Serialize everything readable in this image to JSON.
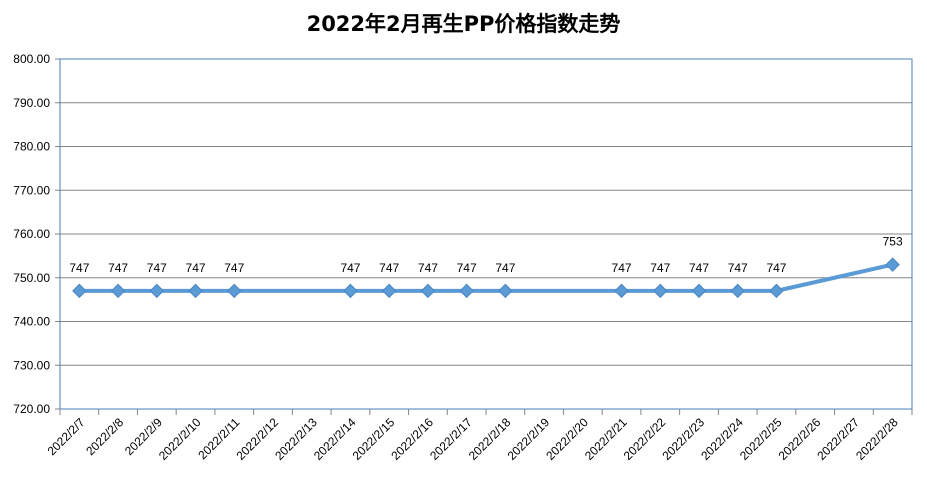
{
  "chart_data": {
    "type": "line",
    "title": "2022年2月再生PP价格指数走势",
    "xlabel": "",
    "ylabel": "",
    "ylim": [
      720,
      800
    ],
    "y_ticks": [
      "720.00",
      "730.00",
      "740.00",
      "750.00",
      "760.00",
      "770.00",
      "780.00",
      "790.00",
      "800.00"
    ],
    "categories": [
      "2022/2/7",
      "2022/2/8",
      "2022/2/9",
      "2022/2/10",
      "2022/2/11",
      "2022/2/12",
      "2022/2/13",
      "2022/2/14",
      "2022/2/15",
      "2022/2/16",
      "2022/2/17",
      "2022/2/18",
      "2022/2/19",
      "2022/2/20",
      "2022/2/21",
      "2022/2/22",
      "2022/2/23",
      "2022/2/24",
      "2022/2/25",
      "2022/2/26",
      "2022/2/27",
      "2022/2/28"
    ],
    "series": [
      {
        "values": [
          747,
          747,
          747,
          747,
          747,
          null,
          null,
          747,
          747,
          747,
          747,
          747,
          null,
          null,
          747,
          747,
          747,
          747,
          747,
          null,
          null,
          753
        ],
        "labels": [
          "747",
          "747",
          "747",
          "747",
          "747",
          "",
          "",
          "747",
          "747",
          "747",
          "747",
          "747",
          "",
          "",
          "747",
          "747",
          "747",
          "747",
          "747",
          "",
          "",
          "753"
        ]
      }
    ],
    "grid": true,
    "legend": "none",
    "colors": {
      "line": "#5b9bd5",
      "grid": "#868686",
      "border": "#4a7ebb",
      "axis": "#868686"
    }
  }
}
